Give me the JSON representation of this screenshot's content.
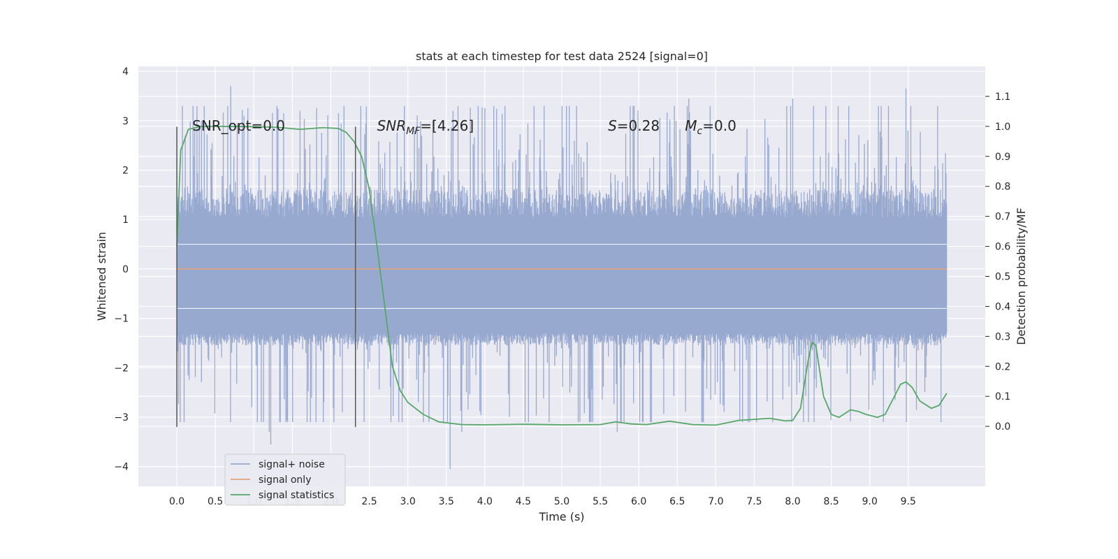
{
  "chart_data": {
    "type": "line",
    "title": "stats at each timestep for test data 2524 [signal=0]",
    "xlabel": "Time (s)",
    "ylabel": "Whitened strain",
    "y2label": "Detection probability/MF",
    "xlim": [
      -0.5,
      10.5
    ],
    "ylim": [
      -4.4,
      4.1
    ],
    "y2lim": [
      -0.2,
      1.2
    ],
    "xticks": [
      0.0,
      0.5,
      1.0,
      1.5,
      2.0,
      2.5,
      3.0,
      3.5,
      4.0,
      4.5,
      5.0,
      5.5,
      6.0,
      6.5,
      7.0,
      7.5,
      8.0,
      8.5,
      9.0,
      9.5
    ],
    "yticks": [
      4,
      3,
      2,
      1,
      0,
      -1,
      -2,
      -3,
      -4
    ],
    "ytick_labels": [
      "4",
      "3",
      "2",
      "1",
      "0",
      "−1",
      "−2",
      "−3",
      "−4"
    ],
    "y2ticks": [
      1.1,
      1.0,
      0.9,
      0.8,
      0.7,
      0.6,
      0.5,
      0.4,
      0.3,
      0.2,
      0.1,
      0.0
    ],
    "grid": true,
    "legend_position": "lower-left",
    "background": "#eaeaf2",
    "series": [
      {
        "name": "signal+ noise",
        "axis": "left",
        "color": "#98a9d0",
        "x_start": 0.0,
        "x_end": 10.0,
        "core_range": [
          -1.3,
          1.05
        ],
        "spike_max": 3.7,
        "spike_min": -4.05,
        "highlights": [
          {
            "x": 0.7,
            "y": 3.7
          },
          {
            "x": 1.2,
            "y": -3.3
          },
          {
            "x": 1.22,
            "y": -3.55
          },
          {
            "x": 3.55,
            "y": -4.05
          },
          {
            "x": 3.7,
            "y": -3.3
          },
          {
            "x": 6.65,
            "y": 3.45
          },
          {
            "x": 8.0,
            "y": 3.45
          },
          {
            "x": 9.47,
            "y": 3.65
          },
          {
            "x": 0.32,
            "y": 3.0
          },
          {
            "x": 1.6,
            "y": 3.2
          },
          {
            "x": 2.1,
            "y": 3.15
          },
          {
            "x": 5.72,
            "y": -3.3
          }
        ]
      },
      {
        "name": "signal only",
        "axis": "left",
        "color": "#e0a37f",
        "points": [
          [
            0.0,
            0.0
          ],
          [
            10.0,
            0.0
          ]
        ]
      },
      {
        "name": "signal statistics",
        "axis": "right",
        "color": "#55a868",
        "points": [
          [
            0.0,
            0.6
          ],
          [
            0.05,
            0.92
          ],
          [
            0.15,
            0.99
          ],
          [
            0.3,
            1.0
          ],
          [
            0.6,
            1.0
          ],
          [
            1.0,
            0.999
          ],
          [
            1.3,
            0.997
          ],
          [
            1.6,
            0.99
          ],
          [
            1.9,
            0.996
          ],
          [
            2.1,
            0.993
          ],
          [
            2.2,
            0.98
          ],
          [
            2.3,
            0.95
          ],
          [
            2.4,
            0.9
          ],
          [
            2.5,
            0.79
          ],
          [
            2.6,
            0.6
          ],
          [
            2.7,
            0.4
          ],
          [
            2.8,
            0.2
          ],
          [
            2.9,
            0.12
          ],
          [
            3.0,
            0.08
          ],
          [
            3.2,
            0.04
          ],
          [
            3.4,
            0.015
          ],
          [
            3.7,
            0.006
          ],
          [
            4.0,
            0.005
          ],
          [
            4.5,
            0.007
          ],
          [
            5.0,
            0.005
          ],
          [
            5.5,
            0.006
          ],
          [
            5.7,
            0.015
          ],
          [
            5.9,
            0.008
          ],
          [
            6.1,
            0.006
          ],
          [
            6.4,
            0.017
          ],
          [
            6.7,
            0.006
          ],
          [
            7.0,
            0.004
          ],
          [
            7.3,
            0.02
          ],
          [
            7.7,
            0.027
          ],
          [
            7.9,
            0.018
          ],
          [
            8.0,
            0.02
          ],
          [
            8.1,
            0.06
          ],
          [
            8.2,
            0.22
          ],
          [
            8.25,
            0.28
          ],
          [
            8.3,
            0.27
          ],
          [
            8.4,
            0.1
          ],
          [
            8.5,
            0.04
          ],
          [
            8.6,
            0.03
          ],
          [
            8.75,
            0.055
          ],
          [
            8.85,
            0.05
          ],
          [
            8.95,
            0.04
          ],
          [
            9.1,
            0.03
          ],
          [
            9.2,
            0.04
          ],
          [
            9.3,
            0.09
          ],
          [
            9.4,
            0.14
          ],
          [
            9.47,
            0.148
          ],
          [
            9.55,
            0.13
          ],
          [
            9.65,
            0.085
          ],
          [
            9.8,
            0.06
          ],
          [
            9.9,
            0.07
          ],
          [
            10.0,
            0.11
          ]
        ]
      }
    ],
    "vlines": [
      0.0,
      2.32
    ],
    "annotations": [
      {
        "text": "SNR_opt=0.0",
        "x": 0.2,
        "y": 2.9
      },
      {
        "text": "SNR",
        "sub": "MF",
        "suffix": "=[4.26]",
        "italic": true,
        "x": 2.6,
        "y": 2.9
      },
      {
        "text": "S",
        "suffix": "=0.28",
        "italic": true,
        "x": 5.6,
        "y": 2.9
      },
      {
        "text": "M",
        "sub": "c",
        "suffix": "=0.0",
        "italic": true,
        "x": 6.6,
        "y": 2.9
      }
    ]
  }
}
